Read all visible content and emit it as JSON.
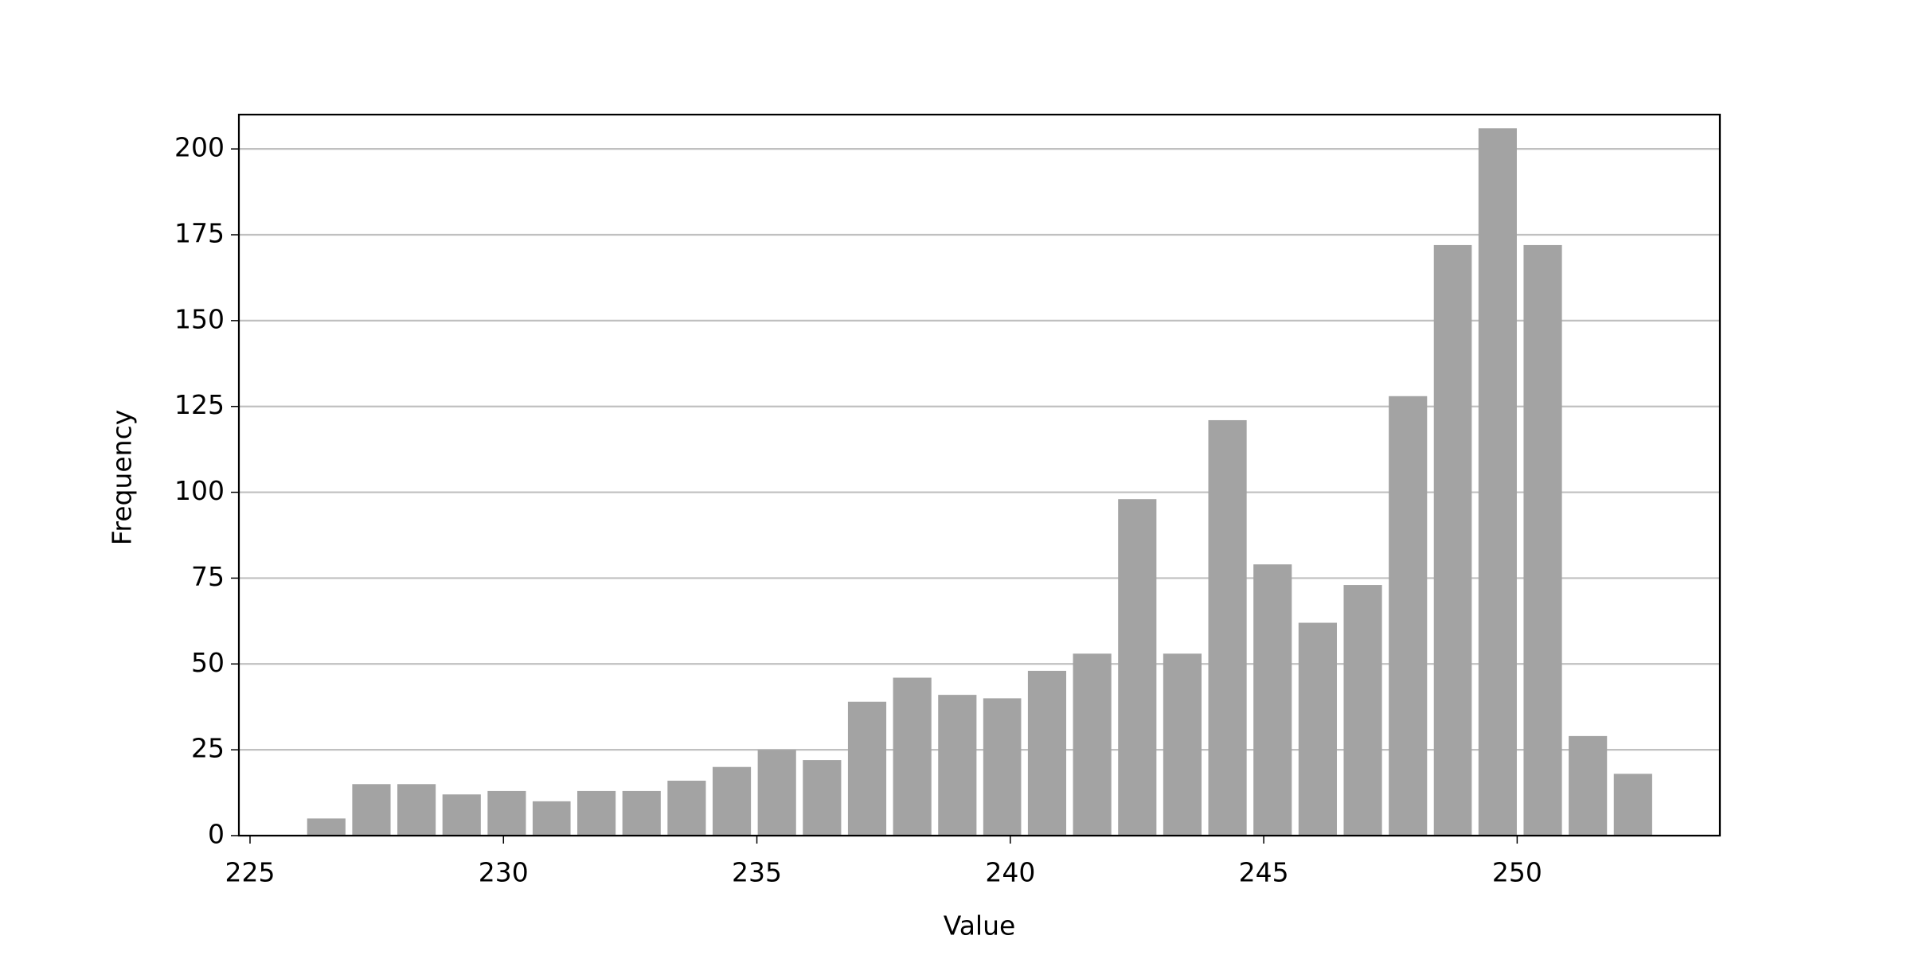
{
  "chart_data": {
    "type": "histogram",
    "xlabel": "Value",
    "ylabel": "Frequency",
    "bins": [
      226.06,
      226.95,
      227.84,
      228.73,
      229.62,
      230.51,
      231.39,
      232.28,
      233.17,
      234.06,
      234.95,
      235.84,
      236.73,
      237.62,
      238.51,
      239.4,
      240.28,
      241.17,
      242.06,
      242.95,
      243.84,
      244.73,
      245.62,
      246.51,
      247.4,
      248.29,
      249.17,
      250.06,
      250.95,
      251.84,
      252.73
    ],
    "values": [
      5,
      15,
      15,
      12,
      13,
      10,
      13,
      13,
      16,
      20,
      25,
      22,
      39,
      46,
      41,
      40,
      48,
      53,
      98,
      53,
      121,
      79,
      62,
      73,
      128,
      172,
      206,
      172,
      29,
      18
    ],
    "color": "#a3a3a3",
    "xlim": [
      224.78,
      254
    ],
    "xticks": [
      225,
      230,
      235,
      240,
      245,
      250
    ],
    "ylim": [
      0,
      210
    ],
    "yticks": [
      0,
      25,
      50,
      75,
      100,
      125,
      150,
      175,
      200
    ],
    "grid": true
  }
}
